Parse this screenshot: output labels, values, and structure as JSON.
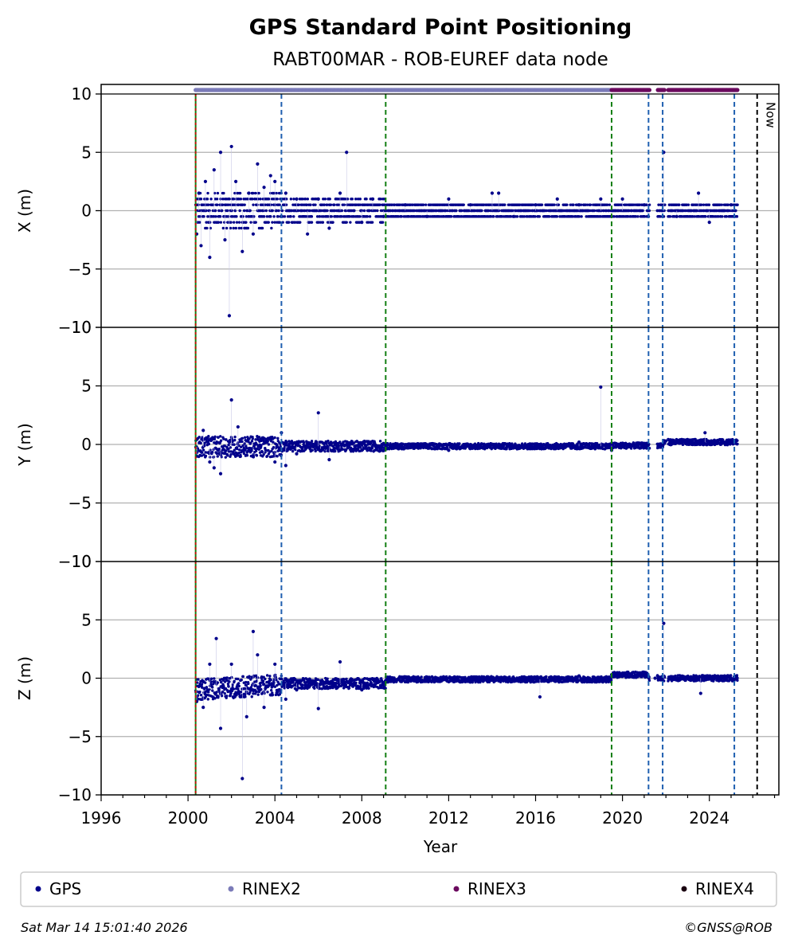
{
  "title": "GPS Standard Point Positioning",
  "subtitle": "RABT00MAR - ROB-EUREF data node",
  "footer": {
    "timestamp": "Sat Mar 14 15:01:40 2026",
    "copyright": "©GNSS@ROB"
  },
  "colors": {
    "gps": "#00008b",
    "rinex2": "#7b7bb8",
    "rinex3": "#6b0a5e",
    "rinex4": "#1a0010",
    "equipment_change": "#1f5fb0",
    "antenna_change": "#137f13",
    "start_marker": "#cc0000",
    "now_marker": "#000000",
    "grid": "#b0b0b0"
  },
  "chart_data": {
    "type": "scatter",
    "xlabel": "Year",
    "xlim": [
      1996,
      2027.2
    ],
    "xticks": [
      "1996",
      "2000",
      "2004",
      "2008",
      "2012",
      "2016",
      "2020",
      "2024"
    ],
    "legend": {
      "placement": "bottom",
      "entries": [
        {
          "label": "GPS",
          "color": "#00008b"
        },
        {
          "label": "RINEX2",
          "color": "#7b7bb8"
        },
        {
          "label": "RINEX3",
          "color": "#6b0a5e"
        },
        {
          "label": "RINEX4",
          "color": "#1a0010"
        }
      ]
    },
    "grid": true,
    "now_label": "Now",
    "now_year": 2026.2,
    "vertical_events": [
      {
        "year": 2000.35,
        "kind": "start"
      },
      {
        "year": 2004.3,
        "kind": "equipment"
      },
      {
        "year": 2009.1,
        "kind": "antenna"
      },
      {
        "year": 2019.5,
        "kind": "antenna"
      },
      {
        "year": 2021.2,
        "kind": "equipment"
      },
      {
        "year": 2021.85,
        "kind": "equipment"
      },
      {
        "year": 2025.15,
        "kind": "equipment"
      }
    ],
    "data_availability": [
      {
        "name": "RINEX2",
        "start": 2000.35,
        "end": 2019.45
      },
      {
        "name": "RINEX3",
        "start": 2019.5,
        "end": 2025.3
      }
    ],
    "panels": [
      {
        "name": "x",
        "ylabel": "X (m)",
        "ylim": [
          -10,
          10
        ],
        "yticks": [
          "−10",
          "−5",
          "0",
          "5",
          "10"
        ],
        "series": [
          {
            "name": "GPS",
            "points": [
              [
                2000.4,
                -2.0
              ],
              [
                2000.5,
                1.5
              ],
              [
                2000.6,
                -3.0
              ],
              [
                2000.8,
                2.5
              ],
              [
                2001.0,
                -4.0
              ],
              [
                2001.2,
                3.5
              ],
              [
                2001.5,
                5.0
              ],
              [
                2001.7,
                -2.5
              ],
              [
                2001.9,
                -9.0
              ],
              [
                2002.0,
                5.5
              ],
              [
                2002.2,
                2.5
              ],
              [
                2002.5,
                -3.5
              ],
              [
                2002.8,
                1.5
              ],
              [
                2003.0,
                -2.0
              ],
              [
                2003.2,
                4.0
              ],
              [
                2003.5,
                2.0
              ],
              [
                2003.8,
                3.0
              ],
              [
                2004.0,
                2.5
              ],
              [
                2004.5,
                1.5
              ],
              [
                2005.0,
                1.0
              ],
              [
                2005.5,
                -2.0
              ],
              [
                2006.0,
                1.0
              ],
              [
                2006.5,
                -1.5
              ],
              [
                2007.0,
                1.5
              ],
              [
                2007.3,
                5.0
              ],
              [
                2008.0,
                -1.0
              ],
              [
                2008.5,
                1.0
              ],
              [
                2009.0,
                -0.5
              ],
              [
                2010.0,
                0.5
              ],
              [
                2011.0,
                -0.5
              ],
              [
                2012.0,
                1.0
              ],
              [
                2013.0,
                0.5
              ],
              [
                2014.0,
                1.5
              ],
              [
                2014.3,
                1.5
              ],
              [
                2015.0,
                -0.5
              ],
              [
                2016.0,
                0.5
              ],
              [
                2017.0,
                1.0
              ],
              [
                2018.0,
                0.5
              ],
              [
                2019.0,
                1.0
              ],
              [
                2020.0,
                1.0
              ],
              [
                2021.0,
                0.5
              ],
              [
                2021.9,
                5.0
              ],
              [
                2022.5,
                -0.5
              ],
              [
                2023.5,
                1.5
              ],
              [
                2024.0,
                -1.0
              ],
              [
                2025.0,
                0.5
              ]
            ]
          }
        ]
      },
      {
        "name": "y",
        "ylabel": "Y (m)",
        "ylim": [
          -10,
          10
        ],
        "yticks": [
          "−10",
          "−5",
          "0",
          "5",
          "10"
        ],
        "series": [
          {
            "name": "GPS",
            "points": [
              [
                2000.4,
                -1.0
              ],
              [
                2000.7,
                1.2
              ],
              [
                2001.0,
                -1.5
              ],
              [
                2001.2,
                -2.0
              ],
              [
                2001.5,
                -2.5
              ],
              [
                2002.0,
                3.8
              ],
              [
                2002.3,
                1.5
              ],
              [
                2003.0,
                -1.0
              ],
              [
                2004.0,
                -1.5
              ],
              [
                2004.3,
                1.0
              ],
              [
                2004.5,
                -1.8
              ],
              [
                2005.0,
                -0.8
              ],
              [
                2006.0,
                2.7
              ],
              [
                2006.5,
                -1.3
              ],
              [
                2007.0,
                -0.5
              ],
              [
                2008.0,
                -0.5
              ],
              [
                2010.0,
                -0.3
              ],
              [
                2012.0,
                -0.5
              ],
              [
                2014.0,
                0.0
              ],
              [
                2016.0,
                -0.2
              ],
              [
                2018.0,
                0.2
              ],
              [
                2019.0,
                4.9
              ],
              [
                2019.5,
                -0.5
              ],
              [
                2020.5,
                0.0
              ],
              [
                2022.0,
                0.3
              ],
              [
                2023.8,
                1.0
              ],
              [
                2025.0,
                0.2
              ]
            ]
          }
        ]
      },
      {
        "name": "z",
        "ylabel": "Z (m)",
        "ylim": [
          -10,
          10
        ],
        "yticks": [
          "−10",
          "−5",
          "0",
          "5",
          "10"
        ],
        "series": [
          {
            "name": "GPS",
            "points": [
              [
                2000.4,
                -2.0
              ],
              [
                2000.7,
                -2.5
              ],
              [
                2001.0,
                1.2
              ],
              [
                2001.3,
                3.4
              ],
              [
                2001.5,
                -4.3
              ],
              [
                2002.0,
                1.2
              ],
              [
                2002.5,
                -8.6
              ],
              [
                2002.7,
                -3.3
              ],
              [
                2003.0,
                4.0
              ],
              [
                2003.2,
                2.0
              ],
              [
                2003.5,
                -2.5
              ],
              [
                2004.0,
                1.2
              ],
              [
                2004.5,
                -1.8
              ],
              [
                2005.0,
                -1.0
              ],
              [
                2006.0,
                -2.6
              ],
              [
                2007.0,
                1.4
              ],
              [
                2008.0,
                -1.0
              ],
              [
                2010.0,
                -0.3
              ],
              [
                2012.0,
                -0.3
              ],
              [
                2014.0,
                0.0
              ],
              [
                2016.0,
                0.0
              ],
              [
                2016.2,
                -1.6
              ],
              [
                2018.0,
                0.2
              ],
              [
                2019.5,
                0.3
              ],
              [
                2020.5,
                0.5
              ],
              [
                2021.5,
                0.0
              ],
              [
                2021.9,
                4.7
              ],
              [
                2023.0,
                0.0
              ],
              [
                2023.6,
                -1.3
              ],
              [
                2024.5,
                0.0
              ],
              [
                2025.0,
                0.0
              ]
            ]
          }
        ]
      }
    ]
  }
}
